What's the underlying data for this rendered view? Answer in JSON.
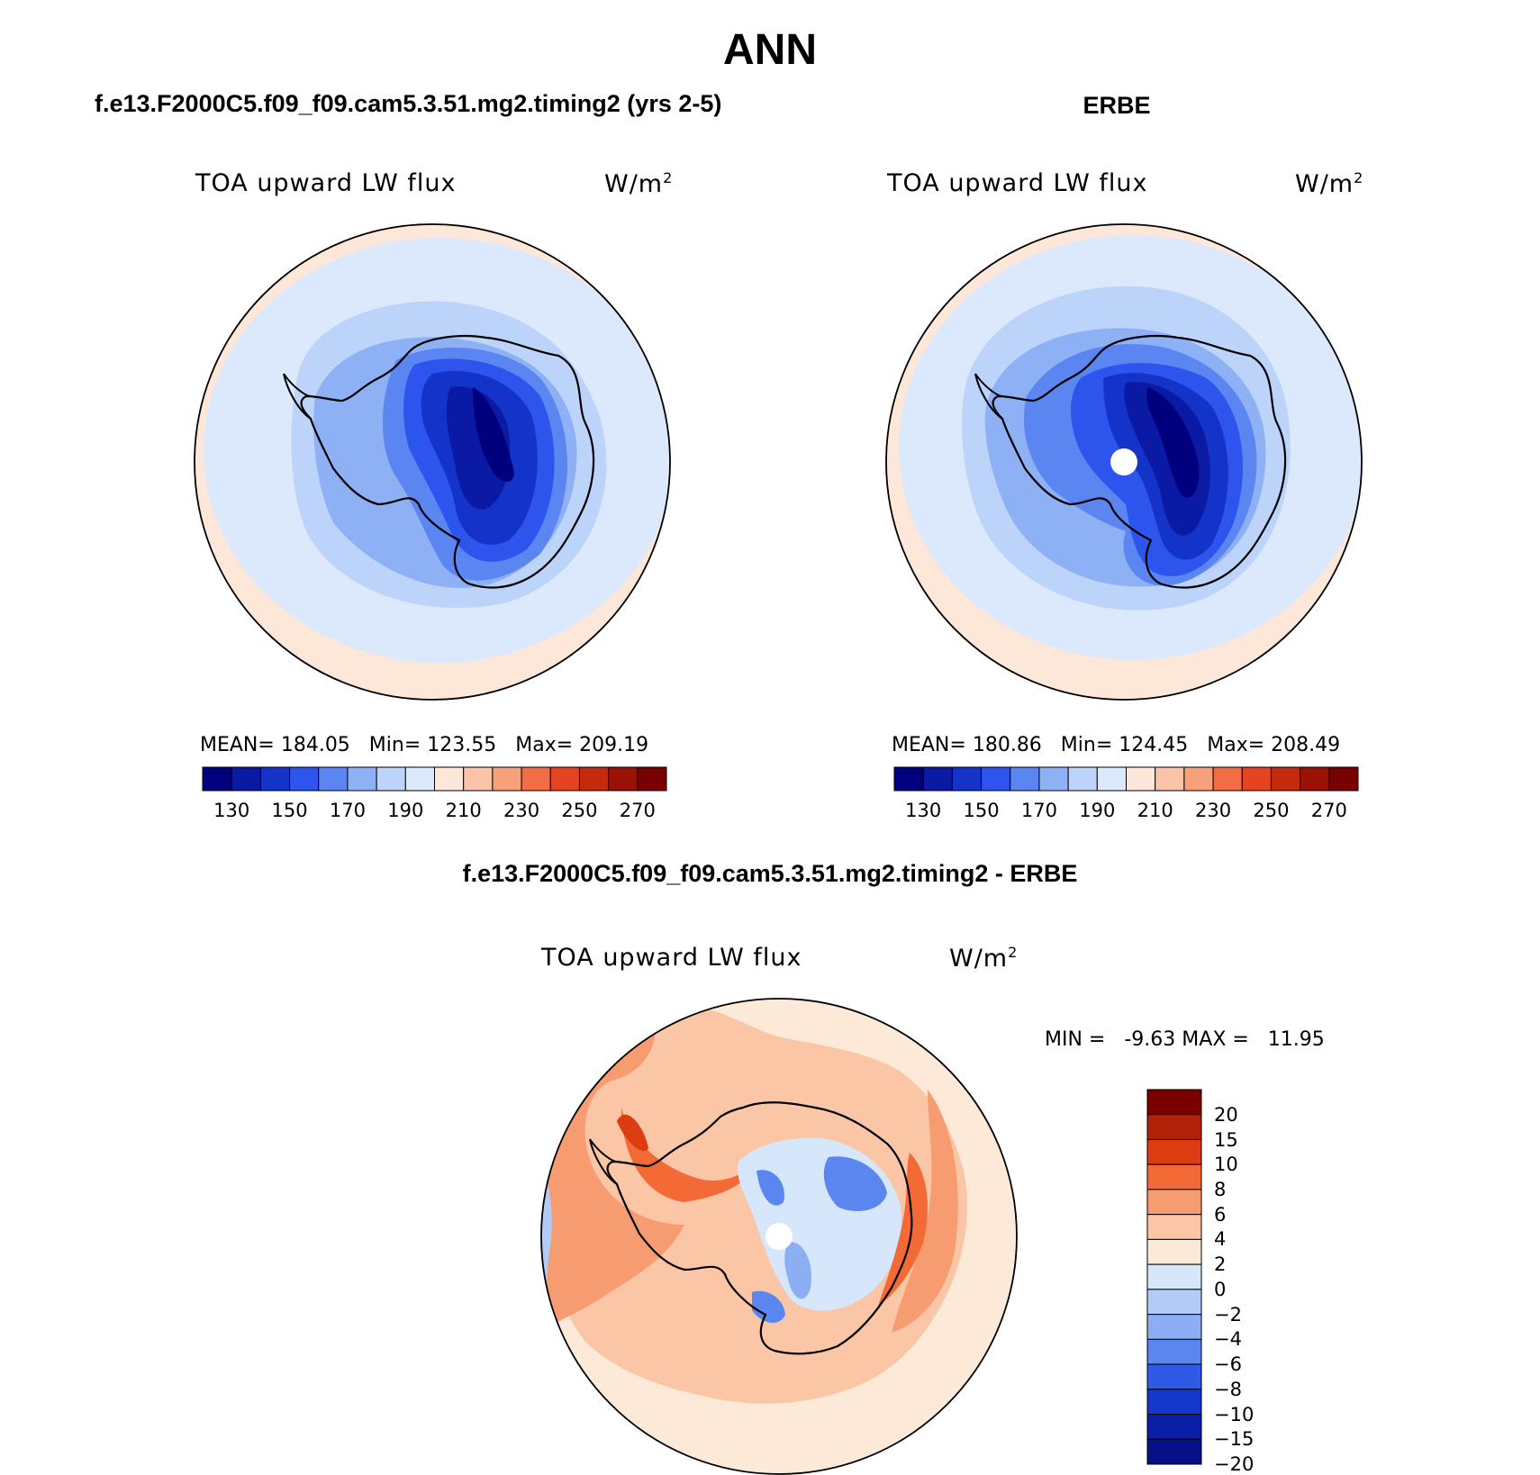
{
  "page_title": "ANN",
  "panels": [
    {
      "title": "f.e13.F2000C5.f09_f09.cam5.3.51.mg2.timing2 (yrs 2-5)",
      "variable": "TOA upward LW flux",
      "units": "W/m",
      "units_exponent": "2",
      "stats": {
        "mean_label": "MEAN=",
        "mean": "184.05",
        "min_label": "Min=",
        "min": "123.55",
        "max_label": "Max=",
        "max": "209.19"
      }
    },
    {
      "title": "ERBE",
      "variable": "TOA upward LW flux",
      "units": "W/m",
      "units_exponent": "2",
      "stats": {
        "mean_label": "MEAN=",
        "mean": "180.86",
        "min_label": "Min=",
        "min": "124.45",
        "max_label": "Max=",
        "max": "208.49"
      }
    }
  ],
  "difference": {
    "title": "f.e13.F2000C5.f09_f09.cam5.3.51.mg2.timing2 - ERBE",
    "variable": "TOA upward LW flux",
    "units": "W/m",
    "units_exponent": "2",
    "min_label": "MIN =",
    "min": "-9.63",
    "max_label": "MAX =",
    "max": "11.95"
  },
  "colorbar_main": {
    "colors": [
      "#00007f",
      "#0a1aa5",
      "#1433c8",
      "#2d55ee",
      "#5b86f2",
      "#8eb1f6",
      "#bcd3fa",
      "#dce9fc",
      "#fde7d9",
      "#fbc3a8",
      "#f8a07a",
      "#f26d45",
      "#e4441f",
      "#c42a0c",
      "#9a1206",
      "#780000"
    ],
    "labels": [
      "130",
      "150",
      "170",
      "190",
      "210",
      "230",
      "250",
      "270"
    ]
  },
  "colorbar_diff": {
    "colors": [
      "#7a0000",
      "#b22208",
      "#dd3b10",
      "#f46a36",
      "#f79b70",
      "#fbc6a5",
      "#fde9d8",
      "#d6e6fb",
      "#b3cbf7",
      "#8caef3",
      "#5b86f0",
      "#2f5ae8",
      "#1437cc",
      "#0a1fa8",
      "#040f88"
    ],
    "labels": [
      "20",
      "15",
      "10",
      "8",
      "6",
      "4",
      "2",
      "0",
      "−2",
      "−4",
      "−6",
      "−8",
      "−10",
      "−15",
      "−20"
    ]
  }
}
